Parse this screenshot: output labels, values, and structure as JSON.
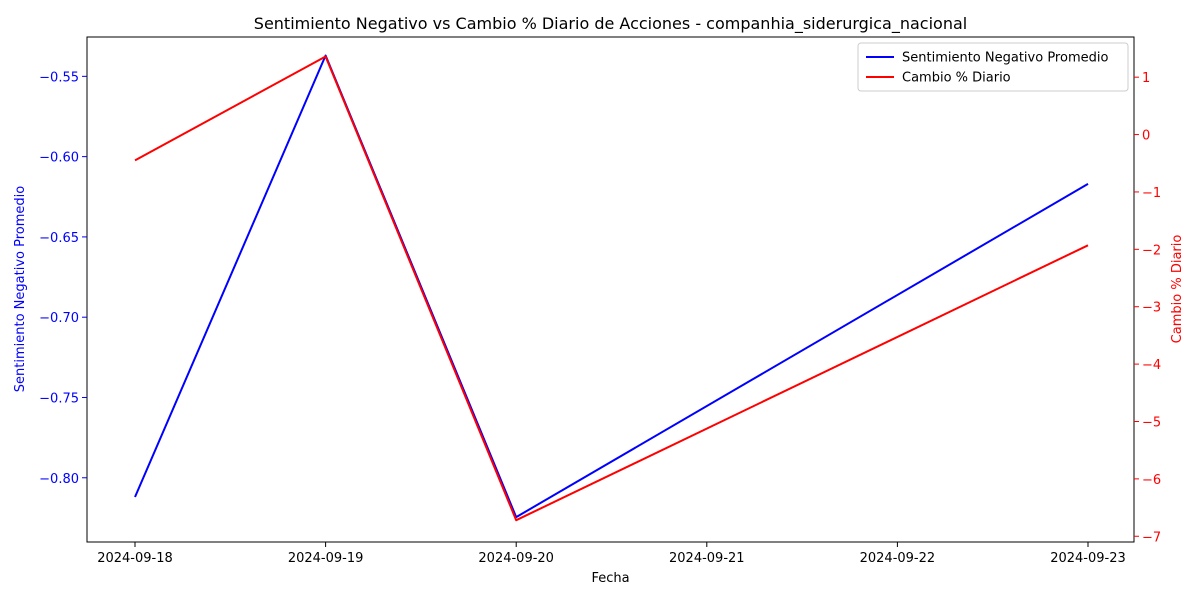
{
  "chart_data": {
    "type": "line",
    "title": "Sentimiento Negativo vs Cambio % Diario de Acciones - companhia_siderurgica_nacional",
    "xlabel": "Fecha",
    "ylabel_left": "Sentimiento Negativo Promedio",
    "ylabel_right": "Cambio % Diario",
    "x": [
      "2024-09-18",
      "2024-09-19",
      "2024-09-20",
      "2024-09-23"
    ],
    "x_ticks": [
      "2024-09-18",
      "2024-09-19",
      "2024-09-20",
      "2024-09-21",
      "2024-09-22",
      "2024-09-23"
    ],
    "left_ticks": [
      "−0.55",
      "−0.60",
      "−0.65",
      "−0.70",
      "−0.75",
      "−0.80"
    ],
    "right_ticks": [
      "1",
      "0",
      "−1",
      "−2",
      "−3",
      "−4",
      "−5",
      "−6",
      "−7"
    ],
    "ylim_left": [
      -0.84,
      -0.5255
    ],
    "ylim_right": [
      -7.1,
      1.7
    ],
    "series": [
      {
        "name": "Sentimiento Negativo Promedio",
        "axis": "left",
        "color": "#0000ff",
        "values": [
          -0.812,
          -0.537,
          -0.8245,
          -0.617
        ]
      },
      {
        "name": "Cambio % Diario",
        "axis": "right",
        "color": "#ff0000",
        "values": [
          -0.45,
          1.36,
          -6.72,
          -1.93
        ]
      }
    ],
    "legend_position": "top-right",
    "grid": false,
    "left_axis_color": "#0000ff",
    "right_axis_color": "#ff0000"
  }
}
